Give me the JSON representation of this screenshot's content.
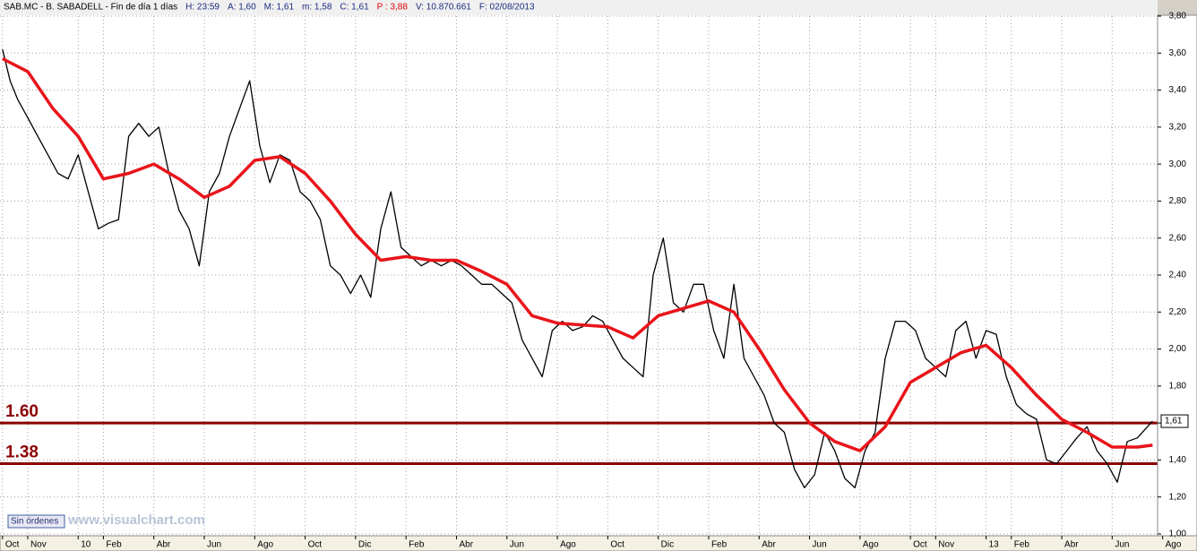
{
  "ui": {
    "header": [
      "SAB.MC - B. SABADELL - Fin de día 1 días",
      "H: 23:59",
      "A: 1,60",
      "M: 1,61",
      "m: 1,58",
      "C: 1,61",
      "P : 3,88",
      "V: 10.870.661",
      "F: 02/08/2013"
    ],
    "button": "Sin órdenes",
    "watermark": "www.visualchart.com"
  },
  "chart_data": {
    "type": "line",
    "xlim": [
      -0.1,
      45.8
    ],
    "ylim": [
      1.0,
      3.8
    ],
    "grid": true,
    "xticks": [
      {
        "value": 0,
        "label": "Oct"
      },
      {
        "value": 1,
        "label": "Nov"
      },
      {
        "value": 3,
        "label": "10"
      },
      {
        "value": 4,
        "label": "Feb"
      },
      {
        "value": 6,
        "label": "Abr"
      },
      {
        "value": 8,
        "label": "Jun"
      },
      {
        "value": 10,
        "label": "Ago"
      },
      {
        "value": 12,
        "label": "Oct"
      },
      {
        "value": 14,
        "label": "Dic"
      },
      {
        "value": 16,
        "label": "Feb"
      },
      {
        "value": 18,
        "label": "Abr"
      },
      {
        "value": 20,
        "label": "Jun"
      },
      {
        "value": 22,
        "label": "Ago"
      },
      {
        "value": 24,
        "label": "Oct"
      },
      {
        "value": 26,
        "label": "Dic"
      },
      {
        "value": 28,
        "label": "Feb"
      },
      {
        "value": 30,
        "label": "Abr"
      },
      {
        "value": 32,
        "label": "Jun"
      },
      {
        "value": 34,
        "label": "Ago"
      },
      {
        "value": 36,
        "label": "Oct"
      },
      {
        "value": 37,
        "label": "Nov"
      },
      {
        "value": 39,
        "label": "13"
      },
      {
        "value": 40,
        "label": "Feb"
      },
      {
        "value": 42,
        "label": "Abr"
      },
      {
        "value": 44,
        "label": "Jun"
      },
      {
        "value": 46,
        "label": "Ago"
      }
    ],
    "yticks": [
      {
        "value": 1.0,
        "label": "1,00"
      },
      {
        "value": 1.2,
        "label": "1,20"
      },
      {
        "value": 1.4,
        "label": "1,40"
      },
      {
        "value": 1.6,
        "label": "1,60"
      },
      {
        "value": 1.8,
        "label": "1,80"
      },
      {
        "value": 2.0,
        "label": "2,00"
      },
      {
        "value": 2.2,
        "label": "2,20"
      },
      {
        "value": 2.4,
        "label": "2,40"
      },
      {
        "value": 2.6,
        "label": "2,60"
      },
      {
        "value": 2.8,
        "label": "2,80"
      },
      {
        "value": 3.0,
        "label": "3,00"
      },
      {
        "value": 3.2,
        "label": "3,20"
      },
      {
        "value": 3.4,
        "label": "3,40"
      },
      {
        "value": 3.6,
        "label": "3,60"
      },
      {
        "value": 3.8,
        "label": "3,80"
      }
    ],
    "series": [
      {
        "color": "#000000",
        "x": [
          0,
          0.3,
          0.6,
          1,
          1.4,
          1.8,
          2.2,
          2.6,
          3,
          3.4,
          3.8,
          4.2,
          4.6,
          5,
          5.4,
          5.8,
          6.2,
          6.6,
          7,
          7.4,
          7.8,
          8.2,
          8.6,
          9,
          9.4,
          9.8,
          10.2,
          10.6,
          11,
          11.4,
          11.8,
          12.2,
          12.6,
          13,
          13.4,
          13.8,
          14.2,
          14.6,
          15,
          15.4,
          15.8,
          16.2,
          16.6,
          17,
          17.4,
          17.8,
          18.2,
          18.6,
          19,
          19.4,
          19.8,
          20.2,
          20.6,
          21,
          21.4,
          21.8,
          22.2,
          22.6,
          23,
          23.4,
          23.8,
          24.2,
          24.6,
          25,
          25.4,
          25.8,
          26.2,
          26.6,
          27,
          27.4,
          27.8,
          28.2,
          28.6,
          29,
          29.4,
          29.8,
          30.2,
          30.6,
          31,
          31.4,
          31.8,
          32.2,
          32.6,
          33,
          33.4,
          33.8,
          34.2,
          34.6,
          35,
          35.4,
          35.8,
          36.2,
          36.6,
          37,
          37.4,
          37.8,
          38.2,
          38.6,
          39,
          39.4,
          39.8,
          40.2,
          40.6,
          41,
          41.4,
          41.8,
          42.2,
          42.6,
          43,
          43.4,
          43.8,
          44.2,
          44.6,
          45,
          45.4,
          45.6
        ],
        "values": [
          3.62,
          3.45,
          3.35,
          3.25,
          3.15,
          3.05,
          2.95,
          2.92,
          3.05,
          2.85,
          2.65,
          2.68,
          2.7,
          3.15,
          3.22,
          3.15,
          3.2,
          2.95,
          2.75,
          2.65,
          2.45,
          2.85,
          2.95,
          3.15,
          3.3,
          3.45,
          3.1,
          2.9,
          3.05,
          3.02,
          2.85,
          2.8,
          2.7,
          2.45,
          2.4,
          2.3,
          2.4,
          2.28,
          2.65,
          2.85,
          2.55,
          2.5,
          2.45,
          2.48,
          2.45,
          2.48,
          2.45,
          2.4,
          2.35,
          2.35,
          2.3,
          2.25,
          2.05,
          1.95,
          1.85,
          2.1,
          2.15,
          2.1,
          2.12,
          2.18,
          2.15,
          2.05,
          1.95,
          1.9,
          1.85,
          2.4,
          2.6,
          2.25,
          2.2,
          2.35,
          2.35,
          2.1,
          1.95,
          2.35,
          1.95,
          1.85,
          1.75,
          1.6,
          1.55,
          1.35,
          1.25,
          1.32,
          1.55,
          1.45,
          1.3,
          1.25,
          1.45,
          1.55,
          1.95,
          2.15,
          2.15,
          2.1,
          1.95,
          1.9,
          1.85,
          2.1,
          2.15,
          1.95,
          2.1,
          2.08,
          1.85,
          1.7,
          1.65,
          1.62,
          1.4,
          1.38,
          1.45,
          1.52,
          1.58,
          1.45,
          1.38,
          1.28,
          1.5,
          1.52,
          1.58,
          1.61
        ]
      },
      {
        "color": "#e8141a",
        "x": [
          0,
          1,
          2,
          3,
          4,
          5,
          6,
          7,
          8,
          9,
          10,
          11,
          12,
          13,
          14,
          15,
          16,
          17,
          18,
          19,
          20,
          21,
          22,
          23,
          24,
          25,
          26,
          27,
          28,
          29,
          30,
          31,
          32,
          33,
          34,
          35,
          36,
          37,
          38,
          39,
          40,
          41,
          42,
          43,
          44,
          45,
          45.6
        ],
        "values": [
          3.57,
          3.5,
          3.3,
          3.15,
          2.92,
          2.95,
          3.0,
          2.92,
          2.82,
          2.88,
          3.02,
          3.04,
          2.95,
          2.8,
          2.62,
          2.48,
          2.5,
          2.48,
          2.48,
          2.42,
          2.35,
          2.18,
          2.14,
          2.13,
          2.12,
          2.06,
          2.18,
          2.22,
          2.26,
          2.2,
          2.0,
          1.78,
          1.6,
          1.5,
          1.45,
          1.58,
          1.82,
          1.9,
          1.98,
          2.02,
          1.9,
          1.75,
          1.62,
          1.55,
          1.47,
          1.47,
          1.48
        ]
      }
    ],
    "levels": [
      {
        "value": 1.6,
        "label": "1.60",
        "color": "#8b0000"
      },
      {
        "value": 1.38,
        "label": "1.38",
        "color": "#8b0000"
      }
    ],
    "last_price": {
      "value": 1.61,
      "label": "1,61"
    }
  }
}
